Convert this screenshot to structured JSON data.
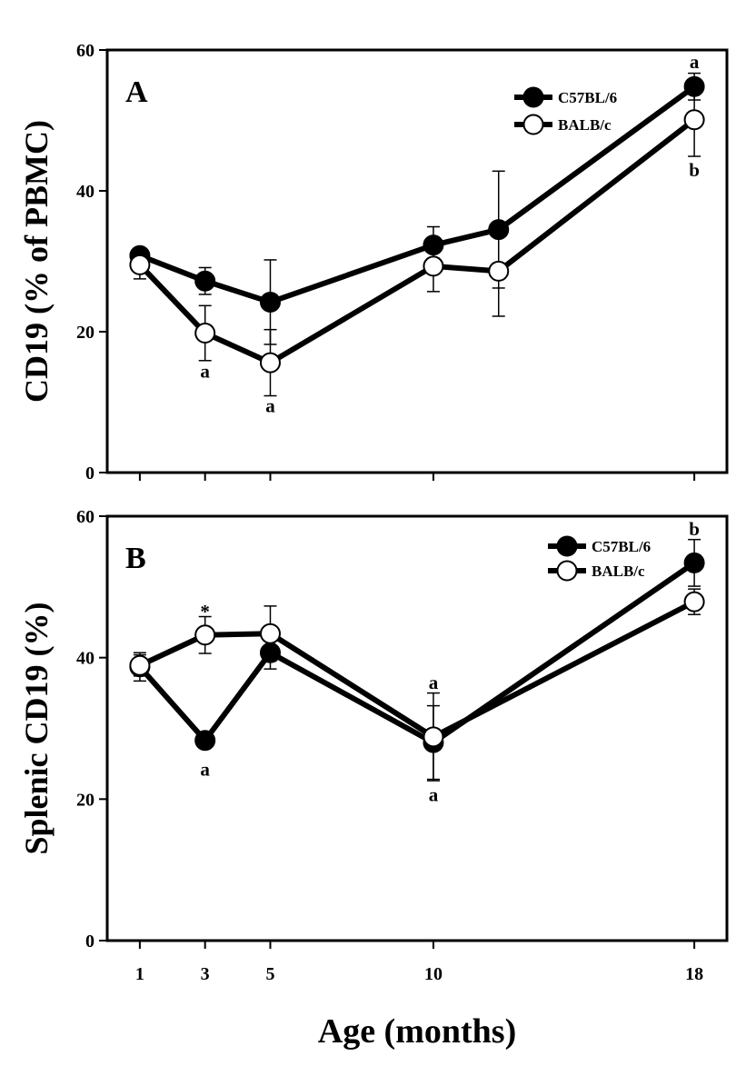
{
  "chart_data": [
    {
      "type": "line",
      "panel_label": "A",
      "ylabel": "CD19 (% of PBMC)",
      "xlabel": "",
      "ylim": [
        0,
        60
      ],
      "yticks": [
        "0",
        "20",
        "40",
        "60"
      ],
      "xlim": [
        0,
        19
      ],
      "legend_position": "top-right",
      "series": [
        {
          "name": "C57BL/6",
          "marker": "filled",
          "x": [
            1,
            3,
            5,
            10,
            12,
            18
          ],
          "values": [
            30.8,
            27.2,
            24.2,
            32.3,
            34.5,
            54.8
          ],
          "err": [
            1.1,
            1.9,
            6.0,
            2.6,
            8.3,
            1.9
          ]
        },
        {
          "name": "BALB/c",
          "marker": "open",
          "x": [
            1,
            3,
            5,
            10,
            12,
            18
          ],
          "values": [
            29.5,
            19.8,
            15.6,
            29.3,
            28.6,
            50.1
          ],
          "err": [
            2.0,
            3.9,
            4.7,
            3.6,
            6.4,
            5.2
          ]
        }
      ],
      "annotations": [
        {
          "text": "a",
          "x": 3,
          "y": 14.4
        },
        {
          "text": "a",
          "x": 5,
          "y": 9.5
        },
        {
          "text": "a",
          "x": 18,
          "y": 58.3
        },
        {
          "text": "b",
          "x": 18,
          "y": 43.0
        }
      ]
    },
    {
      "type": "line",
      "panel_label": "B",
      "ylabel": "Splenic CD19 (%)",
      "xlabel": "Age (months)",
      "ylim": [
        0,
        60
      ],
      "yticks": [
        "0",
        "20",
        "40",
        "60"
      ],
      "xlim": [
        0,
        19
      ],
      "xticks": [
        {
          "value": 1,
          "label": "1"
        },
        {
          "value": 3,
          "label": "3"
        },
        {
          "value": 5,
          "label": "5"
        },
        {
          "value": 10,
          "label": "10"
        },
        {
          "value": 18,
          "label": "18"
        }
      ],
      "legend_position": "top-right",
      "series": [
        {
          "name": "C57BL/6",
          "marker": "filled",
          "x": [
            1,
            3,
            5,
            10,
            18
          ],
          "values": [
            38.7,
            28.3,
            40.7,
            28.0,
            53.4
          ],
          "err": [
            2.0,
            0.7,
            2.3,
            5.2,
            3.3
          ]
        },
        {
          "name": "BALB/c",
          "marker": "open",
          "x": [
            1,
            3,
            5,
            10,
            18
          ],
          "values": [
            38.9,
            43.2,
            43.4,
            28.8,
            47.9
          ],
          "err": [
            1.5,
            2.6,
            3.9,
            6.2,
            1.8
          ]
        }
      ],
      "annotations": [
        {
          "text": "*",
          "x": 3,
          "y": 46.5
        },
        {
          "text": "a",
          "x": 3,
          "y": 24.2
        },
        {
          "text": "a",
          "x": 10,
          "y": 36.5
        },
        {
          "text": "a",
          "x": 10,
          "y": 20.6
        },
        {
          "text": "b",
          "x": 18,
          "y": 58.2
        }
      ]
    }
  ]
}
